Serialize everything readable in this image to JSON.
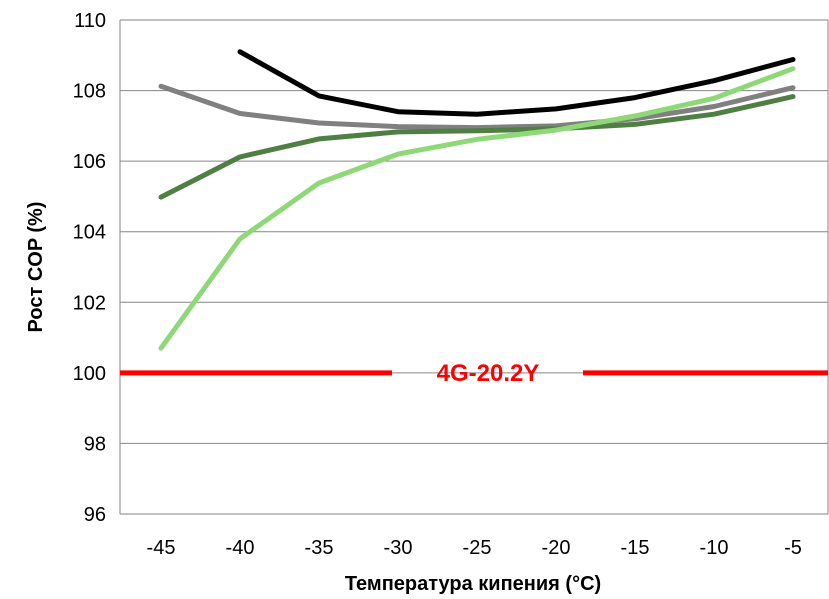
{
  "chart_data": {
    "type": "line",
    "title": "",
    "xlabel": "Температура кипения (°C)",
    "ylabel": "Рост COP (%)",
    "x": [
      -45,
      -40,
      -35,
      -30,
      -25,
      -20,
      -15,
      -10,
      -5
    ],
    "x_tick_labels": [
      "-45",
      "-40",
      "-35",
      "-30",
      "-25",
      "-20",
      "-15",
      "-10",
      "-5"
    ],
    "y_tick_labels": [
      "96",
      "98",
      "100",
      "102",
      "104",
      "106",
      "108",
      "110"
    ],
    "y_ticks": [
      96,
      98,
      100,
      102,
      104,
      106,
      108,
      110
    ],
    "ylim": [
      96,
      110
    ],
    "grid": "horizontal",
    "series": [
      {
        "color": "#000000",
        "values": [
          null,
          109.1,
          107.85,
          107.4,
          107.33,
          107.48,
          107.8,
          108.28,
          108.88
        ]
      },
      {
        "color": "#808080",
        "values": [
          108.12,
          107.35,
          107.08,
          106.98,
          106.95,
          107.0,
          107.2,
          107.55,
          108.08
        ]
      },
      {
        "color": "#4f7f43",
        "values": [
          104.98,
          106.12,
          106.63,
          106.83,
          106.86,
          106.92,
          107.04,
          107.33,
          107.83
        ]
      },
      {
        "color": "#8fd878",
        "values": [
          100.7,
          103.8,
          105.38,
          106.2,
          106.62,
          106.88,
          107.28,
          107.78,
          108.62
        ]
      }
    ],
    "annotations": [
      {
        "text": "4G-20.2Y",
        "y": 100,
        "color": "#ff0000"
      }
    ]
  }
}
